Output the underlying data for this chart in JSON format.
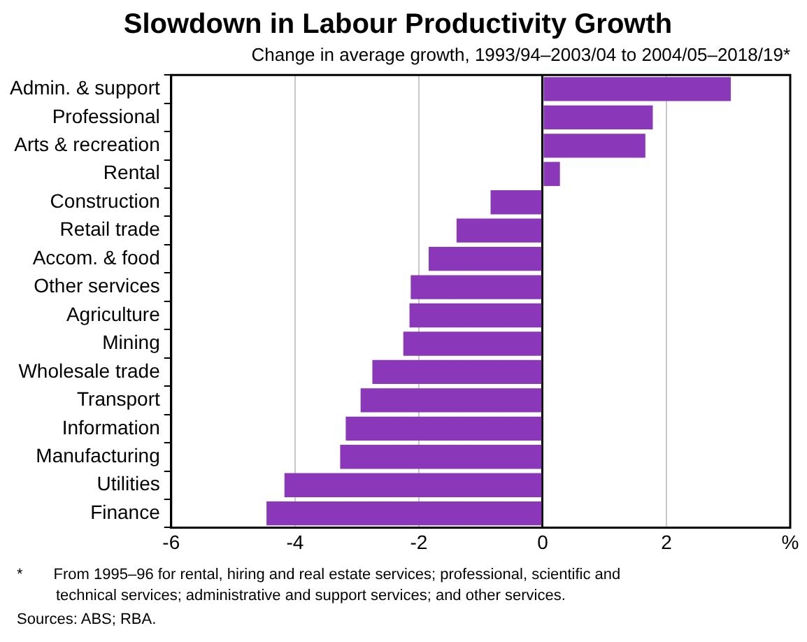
{
  "chart_data": {
    "type": "bar",
    "orientation": "horizontal",
    "title": "Slowdown in Labour Productivity Growth",
    "subtitle": "Change in average growth, 1993/94–2003/04 to 2004/05–2018/19*",
    "categories": [
      "Admin. & support",
      "Professional",
      "Arts & recreation",
      "Rental",
      "Construction",
      "Retail trade",
      "Accom. & food",
      "Other services",
      "Agriculture",
      "Mining",
      "Wholesale trade",
      "Transport",
      "Information",
      "Manufacturing",
      "Utilities",
      "Finance"
    ],
    "values": [
      3.04,
      1.78,
      1.66,
      0.28,
      -0.84,
      -1.39,
      -1.84,
      -2.13,
      -2.15,
      -2.25,
      -2.75,
      -2.94,
      -3.18,
      -3.27,
      -4.17,
      -4.46
    ],
    "color": "#8a37b9",
    "xlim": [
      -6,
      4
    ],
    "xticks": [
      -6,
      -4,
      -2,
      0,
      2,
      {
        "value": 4,
        "label": "%"
      }
    ],
    "grid": "x",
    "annotations": [
      "*  From 1995–96 for rental, hiring and real estate services; professional, scientific and technical services; administrative and support services; and other services.",
      "Sources: ABS; RBA."
    ]
  }
}
